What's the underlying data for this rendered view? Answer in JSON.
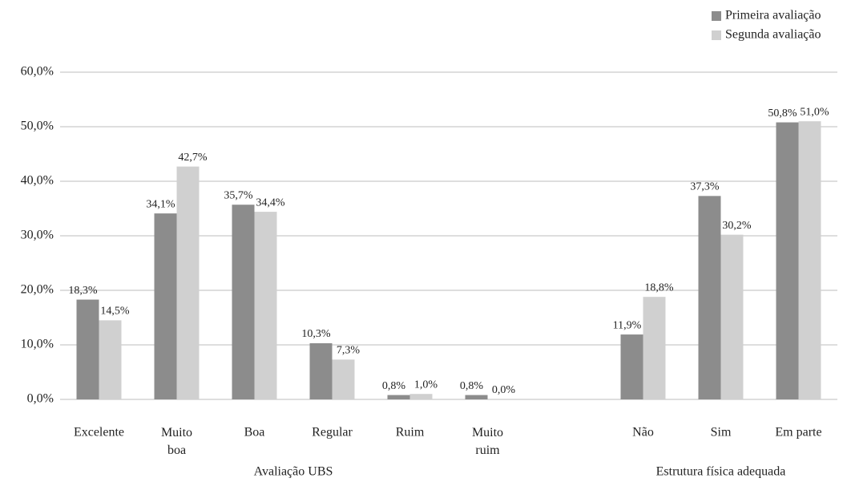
{
  "chart_data": {
    "type": "bar",
    "categories": [
      "Excelente",
      "Muito\nboa",
      "Boa",
      "Regular",
      "Ruim",
      "Muito\nruim",
      null,
      "Não",
      "Sim",
      "Em parte"
    ],
    "groups": [
      {
        "label": "Avaliação UBS"
      },
      {
        "label": "Estrutura física adequada"
      }
    ],
    "series": [
      {
        "name": "Primeira avaliação",
        "color": "#8c8c8c",
        "values": [
          18.3,
          34.1,
          35.7,
          10.3,
          0.8,
          0.8,
          null,
          11.9,
          37.3,
          50.8
        ],
        "value_labels": [
          "18,3%",
          "34,1%",
          "35,7%",
          "10,3%",
          "0,8%",
          "0,8%",
          null,
          "11,9%",
          "37,3%",
          "50,8%"
        ]
      },
      {
        "name": "Segunda avaliação",
        "color": "#d0d0d0",
        "values": [
          14.5,
          42.7,
          34.4,
          7.3,
          1.0,
          0.0,
          null,
          18.8,
          30.2,
          51.0
        ],
        "value_labels": [
          "14,5%",
          "42,7%",
          "34,4%",
          "7,3%",
          "1,0%",
          "0,0%",
          null,
          "18,8%",
          "30,2%",
          "51,0%"
        ]
      }
    ],
    "ylim": [
      0,
      60
    ],
    "yticks": [
      {
        "value": 0,
        "label": "0,0%"
      },
      {
        "value": 10,
        "label": "10,0%"
      },
      {
        "value": 20,
        "label": "20,0%"
      },
      {
        "value": 30,
        "label": "30,0%"
      },
      {
        "value": 40,
        "label": "40,0%"
      },
      {
        "value": 50,
        "label": "50,0%"
      },
      {
        "value": 60,
        "label": "60,0%"
      }
    ],
    "grid": true,
    "legend": "top-right"
  }
}
